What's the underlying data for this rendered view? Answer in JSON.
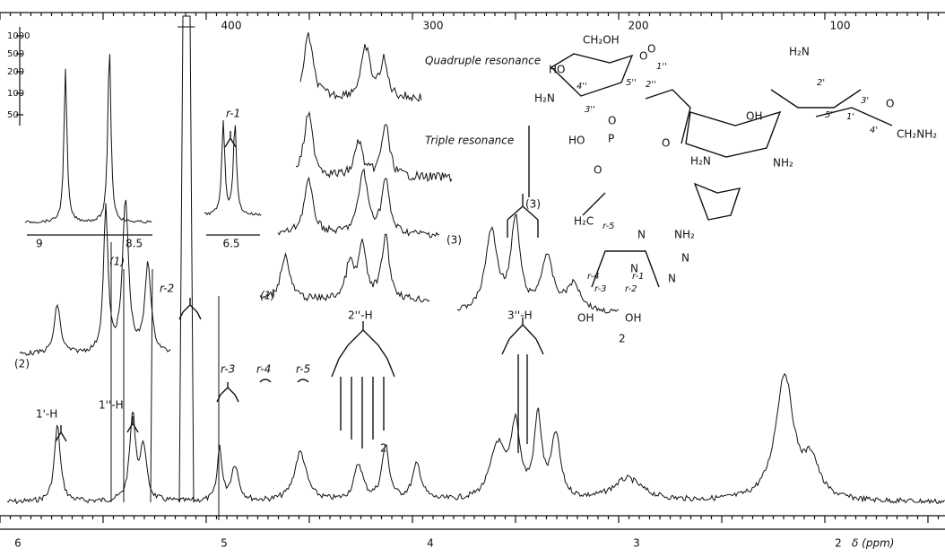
{
  "bottom_axis": {
    "ticks": [
      "6",
      "5",
      "4",
      "3",
      "2"
    ],
    "label": "δ (ppm)"
  },
  "top_axis": {
    "ticks": [
      "400",
      "300",
      "200",
      "100"
    ]
  },
  "left_scale": {
    "ticks": [
      "1000",
      "500",
      "200",
      "100",
      "50"
    ]
  },
  "insets": {
    "left_ticks": [
      "9",
      "8.5"
    ],
    "right_tick": "6.5",
    "right_label": "r-1"
  },
  "traces": {
    "quadruple": "Quadruple resonance",
    "triple": "Triple resonance",
    "trace_3": "(3)",
    "trace_1": "(1)",
    "trace_2": "2",
    "trace_2_left": "(2)",
    "trace_1_left": "(1)",
    "decoupled_3": "(3)",
    "decoupled_2": "2"
  },
  "assignments": [
    "1'-H",
    "1''-H",
    "r-2",
    "r-3",
    "r-4",
    "r-5",
    "2''-H",
    "3''-H"
  ],
  "structure": {
    "labels": [
      "HO",
      "CH₂OH",
      "H₂N",
      "4''",
      "3''",
      "5''",
      "2''",
      "1''",
      "O",
      "O",
      "OH",
      "HO",
      "P",
      "O",
      "O",
      "H₂C",
      "r-5",
      "r-4",
      "r-3",
      "r-2",
      "r-1",
      "OH",
      "OH",
      "NH₂",
      "N",
      "N",
      "N",
      "N",
      "H₂N",
      "NH₂",
      "H₂N",
      "2'",
      "1'",
      "3'",
      "4'",
      "5'",
      "O",
      "CH₂NH₂",
      "O"
    ]
  }
}
